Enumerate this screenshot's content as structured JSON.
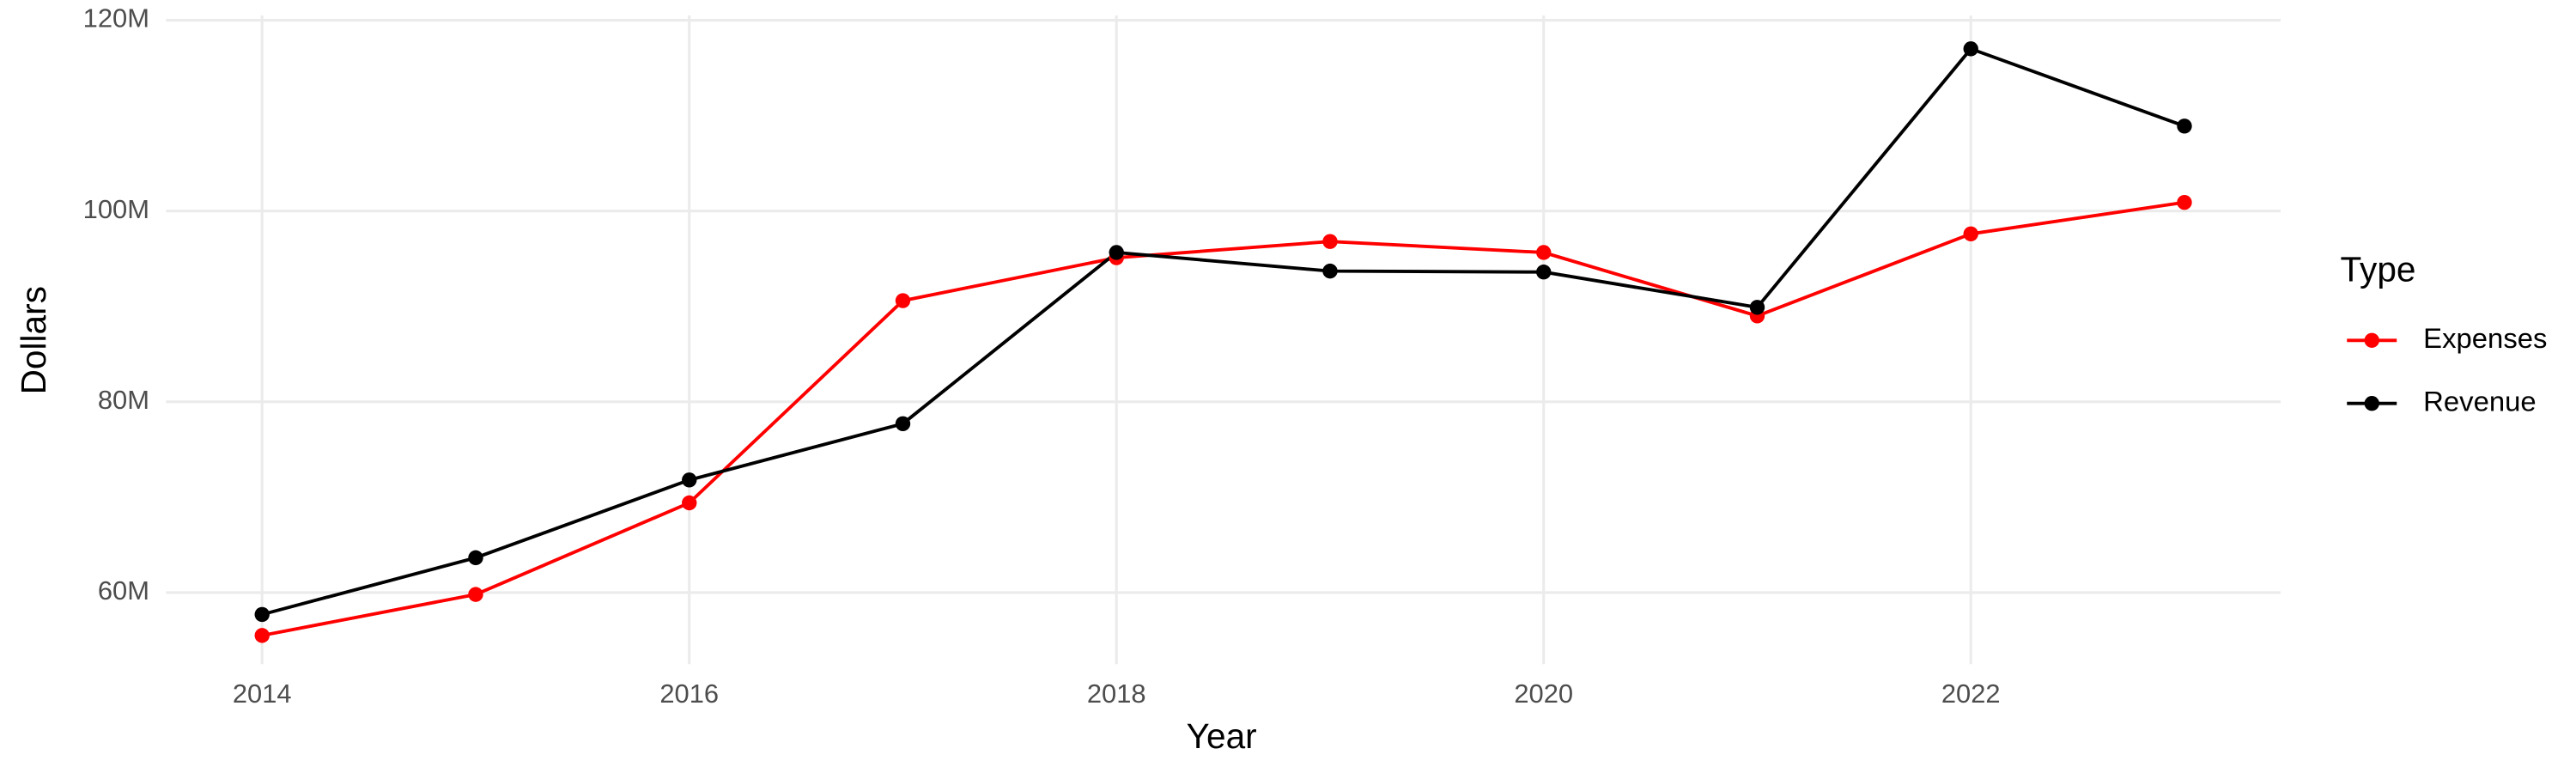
{
  "chart_data": {
    "type": "line",
    "x_label": "Year",
    "y_label": "Dollars",
    "legend_title": "Type",
    "legend_position": "right",
    "grid": true,
    "x": [
      2014,
      2015,
      2016,
      2017,
      2018,
      2019,
      2020,
      2021,
      2022,
      2023
    ],
    "series": [
      {
        "name": "Expenses",
        "color": "#ff0000",
        "values": [
          55500000,
          59800000,
          69400000,
          90600000,
          95100000,
          96800000,
          95650000,
          89000000,
          97600000,
          100900000
        ]
      },
      {
        "name": "Revenue",
        "color": "#000000",
        "values": [
          57700000,
          63650000,
          71800000,
          77700000,
          95650000,
          93700000,
          93600000,
          89900000,
          117000000,
          108900000
        ]
      }
    ],
    "xlim": [
      2013.55,
      2023.45
    ],
    "xticks": [
      2014,
      2016,
      2018,
      2020,
      2022
    ],
    "ylim": [
      52500000,
      120500000
    ],
    "yticks": [
      {
        "value": 60000000,
        "label": "60M"
      },
      {
        "value": 80000000,
        "label": "80M"
      },
      {
        "value": 100000000,
        "label": "100M"
      },
      {
        "value": 120000000,
        "label": "120M"
      }
    ]
  }
}
